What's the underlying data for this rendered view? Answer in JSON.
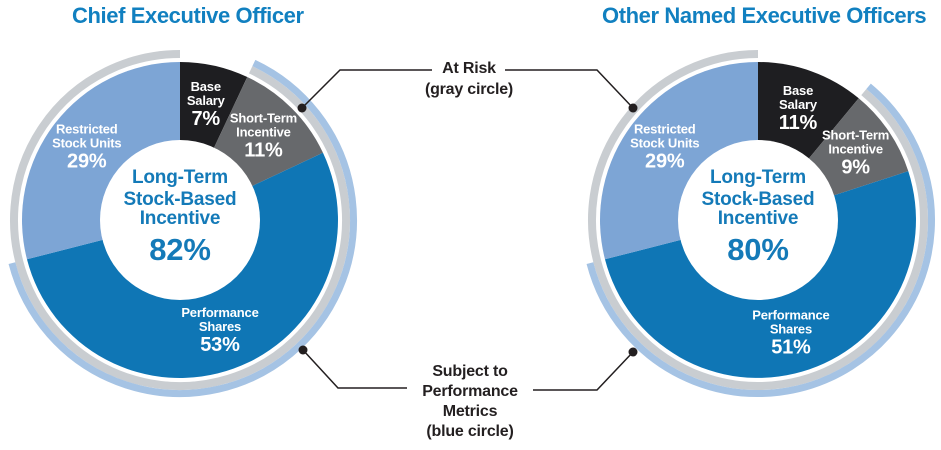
{
  "colors": {
    "title_blue": "#1180C0",
    "center_blue": "#147AB8",
    "callout_text": "#231F20",
    "connector": "#231F20",
    "background": "#FFFFFF"
  },
  "chart_data": [
    {
      "type": "pie",
      "id": "ceo",
      "title": "Chief Executive Officer",
      "center_label": [
        "Long-Term",
        "Stock-Based",
        "Incentive"
      ],
      "center_value": "82%",
      "segments": [
        {
          "id": "base-salary",
          "label": [
            "Base",
            "Salary"
          ],
          "pct_label": "7%",
          "value": 7,
          "color": "#1E1E21"
        },
        {
          "id": "short-term-incentive",
          "label": [
            "Short-Term",
            "Incentive"
          ],
          "pct_label": "11%",
          "value": 11,
          "color": "#67696C"
        },
        {
          "id": "performance-shares",
          "label": [
            "Performance",
            "Shares"
          ],
          "pct_label": "53%",
          "value": 53,
          "color": "#0F76B5"
        },
        {
          "id": "restricted-stock-units",
          "label": [
            "Restricted",
            "Stock Units"
          ],
          "pct_label": "29%",
          "value": 29,
          "color": "#7DA5D5"
        }
      ],
      "rings": {
        "at_risk": {
          "covers": [
            "short-term-incentive",
            "performance-shares",
            "restricted-stock-units"
          ],
          "pct": 93,
          "color": "#C9CDD1"
        },
        "performance_metrics": {
          "covers": [
            "short-term-incentive",
            "performance-shares"
          ],
          "pct": 64,
          "color": "#A5C3E4"
        }
      }
    },
    {
      "type": "pie",
      "id": "neo",
      "title": "Other Named Executive Officers",
      "center_label": [
        "Long-Term",
        "Stock-Based",
        "Incentive"
      ],
      "center_value": "80%",
      "segments": [
        {
          "id": "base-salary",
          "label": [
            "Base",
            "Salary"
          ],
          "pct_label": "11%",
          "value": 11,
          "color": "#1E1E21"
        },
        {
          "id": "short-term-incentive",
          "label": [
            "Short-Term",
            "Incentive"
          ],
          "pct_label": "9%",
          "value": 9,
          "color": "#67696C"
        },
        {
          "id": "performance-shares",
          "label": [
            "Performance",
            "Shares"
          ],
          "pct_label": "51%",
          "value": 51,
          "color": "#0F76B5"
        },
        {
          "id": "restricted-stock-units",
          "label": [
            "Restricted",
            "Stock Units"
          ],
          "pct_label": "29%",
          "value": 29,
          "color": "#7DA5D5"
        }
      ],
      "rings": {
        "at_risk": {
          "covers": [
            "short-term-incentive",
            "performance-shares",
            "restricted-stock-units"
          ],
          "pct": 89,
          "color": "#C9CDD1"
        },
        "performance_metrics": {
          "covers": [
            "short-term-incentive",
            "performance-shares"
          ],
          "pct": 60,
          "color": "#A5C3E4"
        }
      }
    }
  ],
  "callouts": {
    "at_risk": {
      "lines": [
        "At Risk",
        "(gray circle)"
      ]
    },
    "performance_metrics": {
      "lines": [
        "Subject to",
        "Performance",
        "Metrics",
        "(blue circle)"
      ]
    }
  }
}
